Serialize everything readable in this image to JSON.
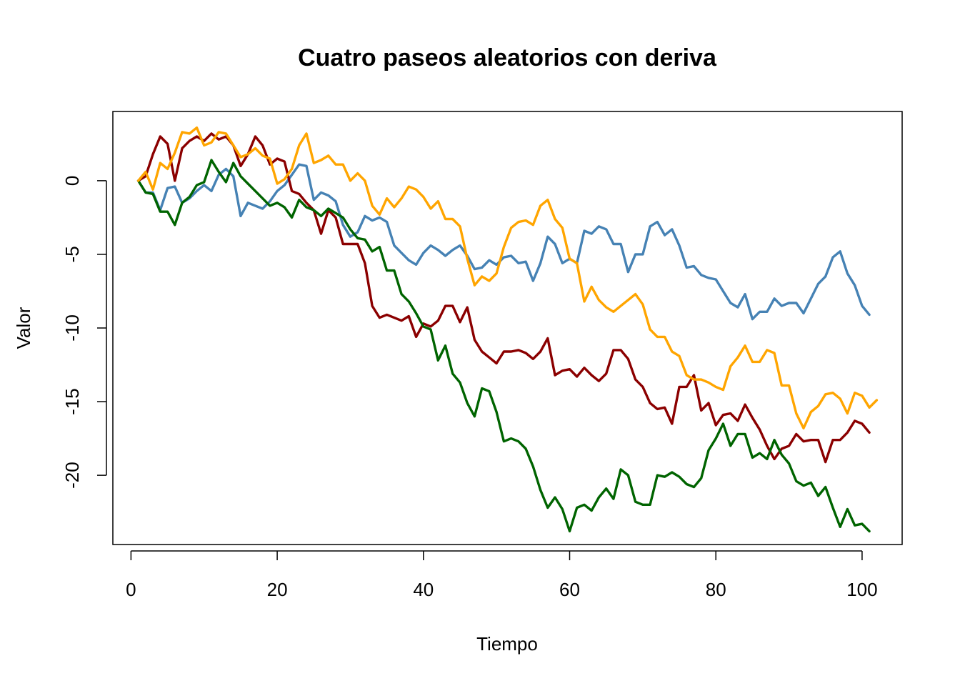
{
  "chart_data": {
    "type": "line",
    "title": "Cuatro paseos aleatorios con deriva",
    "xlabel": "Tiempo",
    "ylabel": "Valor",
    "xlim": [
      -2.48,
      105.48
    ],
    "ylim": [
      -24.7,
      4.7
    ],
    "xticks": [
      0,
      20,
      40,
      60,
      80,
      100
    ],
    "yticks": [
      0,
      -5,
      -10,
      -15,
      -20
    ],
    "grid": false,
    "legend": "none",
    "x_start": 1,
    "series": [
      {
        "color": "#4682B4",
        "values": [
          0,
          -0.8,
          -0.8,
          -2,
          -0.5,
          -0.4,
          -1.5,
          -1.2,
          -0.7,
          -0.3,
          -0.7,
          0.4,
          0.8,
          0.3,
          -2.4,
          -1.5,
          -1.7,
          -1.9,
          -1.4,
          -0.7,
          -0.3,
          0.4,
          1.1,
          1,
          -1.3,
          -0.8,
          -1,
          -1.4,
          -3,
          -3.8,
          -3.5,
          -2.4,
          -2.7,
          -2.5,
          -2.8,
          -4.4,
          -4.9,
          -5.4,
          -5.7,
          -4.9,
          -4.4,
          -4.7,
          -5.1,
          -4.7,
          -4.4,
          -5.1,
          -6,
          -5.9,
          -5.4,
          -5.7,
          -5.2,
          -5.1,
          -5.6,
          -5.5,
          -6.8,
          -5.6,
          -3.8,
          -4.3,
          -5.6,
          -5.3,
          -5.6,
          -3.4,
          -3.6,
          -3.1,
          -3.3,
          -4.3,
          -4.3,
          -6.2,
          -5,
          -5,
          -3.1,
          -2.8,
          -3.7,
          -3.3,
          -4.4,
          -5.9,
          -5.8,
          -6.4,
          -6.6,
          -6.7,
          -7.5,
          -8.3,
          -8.6,
          -7.7,
          -9.4,
          -8.9,
          -8.9,
          -8,
          -8.5,
          -8.3,
          -8.3,
          -9,
          -8,
          -7,
          -6.5,
          -5.2,
          -4.8,
          -6.3,
          -7.1,
          -8.5,
          -9.1
        ]
      },
      {
        "color": "#8B0000",
        "values": [
          0,
          0.3,
          1.8,
          3,
          2.5,
          0,
          2.2,
          2.7,
          3,
          2.7,
          3.2,
          2.8,
          3,
          2.4,
          1,
          1.8,
          3,
          2.4,
          1.1,
          1.5,
          1.3,
          -0.7,
          -0.9,
          -1.5,
          -2,
          -3.6,
          -2,
          -2.5,
          -4.3,
          -4.3,
          -4.3,
          -5.6,
          -8.5,
          -9.3,
          -9.1,
          -9.3,
          -9.5,
          -9.2,
          -10.6,
          -9.7,
          -9.9,
          -9.5,
          -8.5,
          -8.5,
          -9.6,
          -8.6,
          -10.8,
          -11.6,
          -12,
          -12.4,
          -11.6,
          -11.6,
          -11.5,
          -11.7,
          -12.1,
          -11.6,
          -10.7,
          -13.2,
          -12.9,
          -12.8,
          -13.3,
          -12.7,
          -13.2,
          -13.6,
          -13.1,
          -11.5,
          -11.5,
          -12.1,
          -13.5,
          -14,
          -15.1,
          -15.5,
          -15.4,
          -16.5,
          -14,
          -14,
          -13.2,
          -15.6,
          -15.1,
          -16.6,
          -15.9,
          -15.8,
          -16.3,
          -15.2,
          -16.1,
          -16.9,
          -18,
          -18.9,
          -18.2,
          -18,
          -17.2,
          -17.7,
          -17.6,
          -17.6,
          -19.1,
          -17.6,
          -17.6,
          -17.1,
          -16.3,
          -16.5,
          -17.1
        ]
      },
      {
        "color": "#006400",
        "values": [
          0,
          -0.8,
          -0.9,
          -2.1,
          -2.1,
          -3,
          -1.5,
          -1.1,
          -0.3,
          -0.1,
          1.4,
          0.6,
          -0.1,
          1.2,
          0.3,
          -0.2,
          -0.7,
          -1.2,
          -1.7,
          -1.5,
          -1.8,
          -2.5,
          -1.3,
          -1.8,
          -2,
          -2.4,
          -1.9,
          -2.2,
          -2.5,
          -3.3,
          -3.9,
          -4,
          -4.8,
          -4.5,
          -6.1,
          -6.1,
          -7.7,
          -8.2,
          -9,
          -9.9,
          -10.1,
          -12.2,
          -11.2,
          -13.1,
          -13.7,
          -15.1,
          -16,
          -14.1,
          -14.3,
          -15.7,
          -17.7,
          -17.5,
          -17.7,
          -18.2,
          -19.4,
          -21,
          -22.2,
          -21.5,
          -22.3,
          -23.8,
          -22.2,
          -22,
          -22.4,
          -21.5,
          -20.9,
          -21.6,
          -19.6,
          -20,
          -21.8,
          -22,
          -22,
          -20,
          -20.1,
          -19.8,
          -20.1,
          -20.6,
          -20.8,
          -20.2,
          -18.3,
          -17.5,
          -16.5,
          -18,
          -17.2,
          -17.2,
          -18.8,
          -18.5,
          -18.9,
          -17.6,
          -18.6,
          -19.2,
          -20.4,
          -20.7,
          -20.5,
          -21.4,
          -20.8,
          -22.2,
          -23.5,
          -22.3,
          -23.4,
          -23.3,
          -23.8
        ]
      },
      {
        "color": "#FFA500",
        "values": [
          0,
          0.6,
          -0.6,
          1.2,
          0.8,
          1.9,
          3.3,
          3.2,
          3.6,
          2.4,
          2.6,
          3.3,
          3.2,
          2.4,
          1.6,
          1.8,
          2.2,
          1.7,
          1.5,
          -0.2,
          0.1,
          0.8,
          2.4,
          3.2,
          1.2,
          1.4,
          1.7,
          1.1,
          1.1,
          0,
          0.5,
          0,
          -1.7,
          -2.3,
          -1.2,
          -1.8,
          -1.2,
          -0.4,
          -0.6,
          -1.1,
          -1.9,
          -1.4,
          -2.6,
          -2.6,
          -3.1,
          -5.3,
          -7.1,
          -6.5,
          -6.8,
          -6.3,
          -4.5,
          -3.2,
          -2.8,
          -2.7,
          -3,
          -1.7,
          -1.3,
          -2.6,
          -3.2,
          -5.3,
          -5.6,
          -8.2,
          -7.2,
          -8.1,
          -8.6,
          -8.9,
          -8.5,
          -8.1,
          -7.7,
          -8.4,
          -10.1,
          -10.6,
          -10.6,
          -11.6,
          -11.9,
          -13.2,
          -13.5,
          -13.5,
          -13.7,
          -14,
          -14.2,
          -12.6,
          -12,
          -11.2,
          -12.3,
          -12.3,
          -11.5,
          -11.7,
          -13.9,
          -13.9,
          -15.8,
          -16.8,
          -15.7,
          -15.3,
          -14.5,
          -14.4,
          -14.8,
          -15.8,
          -14.4,
          -14.6,
          -15.4,
          -14.9
        ]
      }
    ]
  }
}
